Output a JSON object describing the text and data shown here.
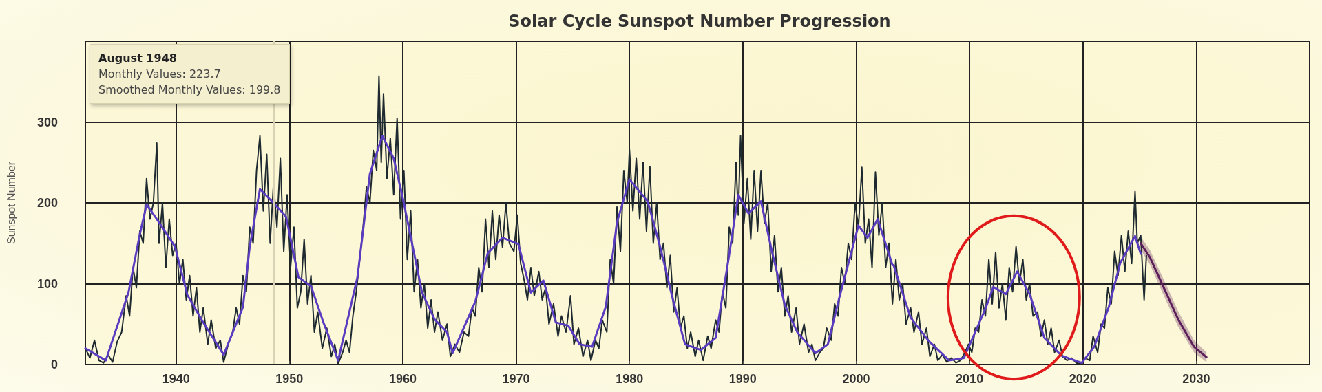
{
  "chart_data": {
    "type": "line",
    "title": "Solar Cycle Sunspot Number Progression",
    "ylabel": "Sunspot Number",
    "xlim": [
      1932,
      2040
    ],
    "xticks": [
      1940,
      1950,
      1960,
      1970,
      1980,
      1990,
      2000,
      2010,
      2020,
      2030
    ],
    "ylim": [
      0,
      400
    ],
    "yticks": [
      0,
      100,
      200,
      300
    ],
    "grid": true,
    "marker": "none",
    "line_style": "solid",
    "series": [
      {
        "color": "#1e2a30",
        "x": [
          1932.0,
          1932.4,
          1932.8,
          1933.2,
          1933.6,
          1934.0,
          1934.4,
          1934.8,
          1935.2,
          1935.6,
          1935.9,
          1936.2,
          1936.5,
          1936.8,
          1937.1,
          1937.4,
          1937.7,
          1938.0,
          1938.3,
          1938.5,
          1938.8,
          1939.1,
          1939.4,
          1939.7,
          1940.0,
          1940.3,
          1940.6,
          1940.9,
          1941.2,
          1941.5,
          1941.8,
          1942.1,
          1942.4,
          1942.8,
          1943.1,
          1943.5,
          1943.9,
          1944.2,
          1944.6,
          1945.0,
          1945.3,
          1945.6,
          1945.9,
          1946.2,
          1946.5,
          1946.8,
          1947.1,
          1947.4,
          1947.7,
          1948.0,
          1948.3,
          1948.6,
          1948.9,
          1949.2,
          1949.5,
          1949.8,
          1950.1,
          1950.4,
          1950.7,
          1951.0,
          1951.3,
          1951.6,
          1951.9,
          1952.2,
          1952.5,
          1952.9,
          1953.3,
          1953.7,
          1954.0,
          1954.3,
          1954.7,
          1955.0,
          1955.3,
          1955.6,
          1955.9,
          1956.2,
          1956.5,
          1956.8,
          1957.1,
          1957.4,
          1957.7,
          1957.9,
          1958.1,
          1958.3,
          1958.6,
          1958.9,
          1959.2,
          1959.5,
          1959.8,
          1960.1,
          1960.4,
          1960.7,
          1961.0,
          1961.3,
          1961.6,
          1961.9,
          1962.2,
          1962.5,
          1962.8,
          1963.1,
          1963.5,
          1963.9,
          1964.2,
          1964.6,
          1965.0,
          1965.4,
          1965.8,
          1966.1,
          1966.4,
          1966.7,
          1967.0,
          1967.3,
          1967.6,
          1967.9,
          1968.2,
          1968.5,
          1968.8,
          1969.1,
          1969.4,
          1969.8,
          1970.1,
          1970.4,
          1970.7,
          1971.0,
          1971.3,
          1971.6,
          1972.0,
          1972.3,
          1972.6,
          1972.9,
          1973.3,
          1973.7,
          1974.0,
          1974.4,
          1974.8,
          1975.1,
          1975.5,
          1975.9,
          1976.3,
          1976.6,
          1977.0,
          1977.3,
          1977.6,
          1978.0,
          1978.3,
          1978.6,
          1978.9,
          1979.2,
          1979.5,
          1979.8,
          1980.0,
          1980.3,
          1980.6,
          1980.9,
          1981.2,
          1981.5,
          1981.8,
          1982.1,
          1982.4,
          1982.7,
          1983.0,
          1983.3,
          1983.6,
          1983.9,
          1984.2,
          1984.5,
          1984.8,
          1985.1,
          1985.4,
          1985.8,
          1986.1,
          1986.5,
          1986.9,
          1987.2,
          1987.6,
          1987.9,
          1988.2,
          1988.5,
          1988.8,
          1989.1,
          1989.4,
          1989.6,
          1989.8,
          1990.1,
          1990.4,
          1990.7,
          1991.0,
          1991.3,
          1991.6,
          1991.9,
          1992.2,
          1992.5,
          1992.8,
          1993.1,
          1993.4,
          1993.7,
          1994.0,
          1994.3,
          1994.7,
          1995.0,
          1995.4,
          1995.8,
          1996.1,
          1996.4,
          1996.8,
          1997.1,
          1997.4,
          1997.8,
          1998.1,
          1998.4,
          1998.7,
          1999.0,
          1999.3,
          1999.6,
          1999.9,
          2000.2,
          2000.5,
          2000.8,
          2001.1,
          2001.4,
          2001.7,
          2002.0,
          2002.3,
          2002.6,
          2002.9,
          2003.2,
          2003.5,
          2003.8,
          2004.1,
          2004.4,
          2004.8,
          2005.1,
          2005.5,
          2005.8,
          2006.2,
          2006.5,
          2006.9,
          2007.2,
          2007.6,
          2008.0,
          2008.4,
          2008.8,
          2009.2,
          2009.6,
          2009.9,
          2010.2,
          2010.5,
          2010.8,
          2011.1,
          2011.4,
          2011.7,
          2012.0,
          2012.3,
          2012.6,
          2012.9,
          2013.2,
          2013.5,
          2013.8,
          2014.1,
          2014.4,
          2014.7,
          2015.0,
          2015.3,
          2015.6,
          2016.0,
          2016.3,
          2016.6,
          2016.9,
          2017.2,
          2017.5,
          2017.9,
          2018.2,
          2018.6,
          2019.0,
          2019.4,
          2019.8,
          2020.2,
          2020.6,
          2020.9,
          2021.3,
          2021.6,
          2021.9,
          2022.2,
          2022.5,
          2022.8,
          2023.1,
          2023.4,
          2023.7,
          2024.0,
          2024.3,
          2024.6,
          2024.8,
          2025.1,
          2025.4,
          2025.6
        ],
        "values": [
          20,
          8,
          30,
          5,
          2,
          12,
          3,
          28,
          40,
          85,
          60,
          120,
          95,
          165,
          150,
          230,
          180,
          200,
          274,
          150,
          200,
          120,
          180,
          135,
          150,
          100,
          130,
          80,
          110,
          60,
          95,
          40,
          70,
          25,
          55,
          20,
          30,
          3,
          25,
          40,
          70,
          50,
          110,
          90,
          170,
          150,
          240,
          283,
          190,
          260,
          150,
          224,
          170,
          255,
          140,
          210,
          120,
          170,
          70,
          90,
          155,
          75,
          110,
          40,
          65,
          20,
          45,
          10,
          25,
          1,
          15,
          30,
          15,
          60,
          90,
          130,
          170,
          220,
          200,
          265,
          240,
          357,
          250,
          335,
          230,
          280,
          210,
          305,
          180,
          240,
          130,
          190,
          90,
          130,
          70,
          100,
          45,
          80,
          40,
          65,
          30,
          50,
          10,
          25,
          15,
          40,
          35,
          70,
          60,
          120,
          90,
          180,
          120,
          190,
          130,
          185,
          145,
          200,
          150,
          140,
          185,
          125,
          105,
          80,
          120,
          85,
          115,
          80,
          95,
          50,
          75,
          35,
          60,
          40,
          85,
          25,
          45,
          10,
          30,
          5,
          30,
          20,
          55,
          40,
          130,
          100,
          195,
          140,
          240,
          200,
          266,
          190,
          255,
          180,
          250,
          165,
          245,
          150,
          200,
          130,
          150,
          95,
          135,
          65,
          95,
          45,
          60,
          20,
          40,
          10,
          30,
          5,
          35,
          20,
          55,
          40,
          90,
          70,
          170,
          150,
          250,
          185,
          283,
          175,
          230,
          155,
          240,
          165,
          240,
          175,
          200,
          115,
          160,
          90,
          120,
          60,
          85,
          40,
          70,
          25,
          50,
          15,
          25,
          5,
          15,
          20,
          45,
          30,
          75,
          60,
          120,
          100,
          150,
          130,
          200,
          170,
          244,
          150,
          180,
          120,
          238,
          160,
          200,
          120,
          150,
          75,
          130,
          80,
          100,
          50,
          70,
          40,
          65,
          25,
          45,
          10,
          25,
          5,
          12,
          3,
          8,
          2,
          5,
          15,
          25,
          15,
          45,
          40,
          80,
          60,
          130,
          75,
          139,
          70,
          100,
          55,
          120,
          90,
          146,
          100,
          130,
          80,
          100,
          60,
          65,
          35,
          55,
          25,
          45,
          15,
          30,
          10,
          5,
          8,
          2,
          1,
          8,
          5,
          35,
          15,
          50,
          45,
          95,
          75,
          140,
          110,
          160,
          115,
          165,
          125,
          214,
          150,
          160,
          80,
          135
        ]
      },
      {
        "color": "#5a3cc0",
        "x": [
          1932.0,
          1933.8,
          1935.8,
          1936.8,
          1937.4,
          1938.3,
          1939.9,
          1941.0,
          1942.4,
          1944.2,
          1945.9,
          1946.5,
          1947.4,
          1948.6,
          1949.7,
          1950.8,
          1951.9,
          1953.0,
          1954.3,
          1956.0,
          1957.1,
          1958.2,
          1959.2,
          1960.0,
          1960.6,
          1961.7,
          1962.8,
          1963.9,
          1964.4,
          1966.4,
          1967.5,
          1968.8,
          1970.2,
          1971.3,
          1972.4,
          1973.5,
          1974.6,
          1975.6,
          1976.7,
          1977.9,
          1978.9,
          1980.0,
          1981.6,
          1982.7,
          1983.8,
          1984.9,
          1986.3,
          1987.6,
          1988.7,
          1989.6,
          1990.5,
          1991.6,
          1992.6,
          1993.7,
          1994.8,
          1996.4,
          1997.5,
          1998.5,
          2000.2,
          2001.0,
          2001.9,
          2003.2,
          2003.3,
          2004.8,
          2006.4,
          2008.2,
          2009.5,
          2011.4,
          2012.1,
          2013.2,
          2014.2,
          2015.3,
          2016.6,
          2018.1,
          2019.9,
          2021.0,
          2022.3,
          2023.3,
          2024.6,
          2025.1
        ],
        "values": [
          20,
          5,
          89,
          161,
          198,
          180,
          146,
          86,
          52,
          12,
          71,
          146,
          217,
          200,
          183,
          108,
          97,
          52,
          5,
          108,
          236,
          283,
          255,
          206,
          165,
          89,
          56,
          40,
          14,
          78,
          138,
          157,
          149,
          89,
          104,
          52,
          48,
          25,
          22,
          71,
          176,
          229,
          202,
          146,
          82,
          25,
          18,
          33,
          127,
          210,
          187,
          202,
          138,
          74,
          40,
          14,
          25,
          82,
          172,
          157,
          180,
          123,
          123,
          58,
          29,
          5,
          8,
          69,
          96,
          87,
          115,
          87,
          33,
          11,
          2,
          22,
          72,
          126,
          159,
          137
        ]
      },
      {
        "type": "line",
        "color": "#5c1f5a",
        "x": [
          2025.1,
          2025.9,
          2027.4,
          2028.4,
          2029.8,
          2030.9
        ],
        "values": [
          150,
          133,
          87,
          56,
          22,
          9
        ],
        "lower": [
          142,
          124,
          77,
          47,
          15,
          3
        ],
        "upper": [
          158,
          142,
          97,
          66,
          30,
          15
        ]
      }
    ],
    "ref_lines": [
      {
        "axis": "x",
        "value": 1948.6,
        "color": "#d9d2b4"
      }
    ],
    "annotations": [
      "August 1948\nMonthly Values: 223.7\nSmoothed Monthly Values: 199.8"
    ]
  }
}
